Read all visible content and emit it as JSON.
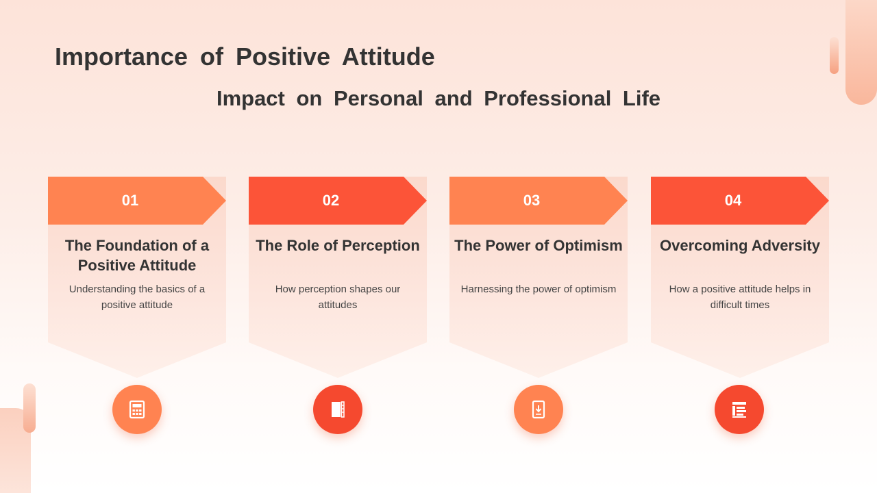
{
  "title": "Importance of Positive Attitude",
  "subtitle": "Impact on Personal and Professional Life",
  "cards": [
    {
      "number": "01",
      "title": "The Foundation of a Positive Attitude",
      "description": "Understanding the basics of a positive attitude",
      "icon": "calculator-icon"
    },
    {
      "number": "02",
      "title": "The Role of Perception",
      "description": "How perception shapes our attitudes",
      "icon": "book-icon"
    },
    {
      "number": "03",
      "title": "The Power of Optimism",
      "description": "Harnessing the power of optimism",
      "icon": "tablet-download-icon"
    },
    {
      "number": "04",
      "title": "Overcoming Adversity",
      "description": "How a positive attitude helps in difficult times",
      "icon": "document-list-icon"
    }
  ],
  "colors": {
    "accent_light": "#ff8351",
    "accent_dark": "#fc5438",
    "text": "#333333"
  }
}
